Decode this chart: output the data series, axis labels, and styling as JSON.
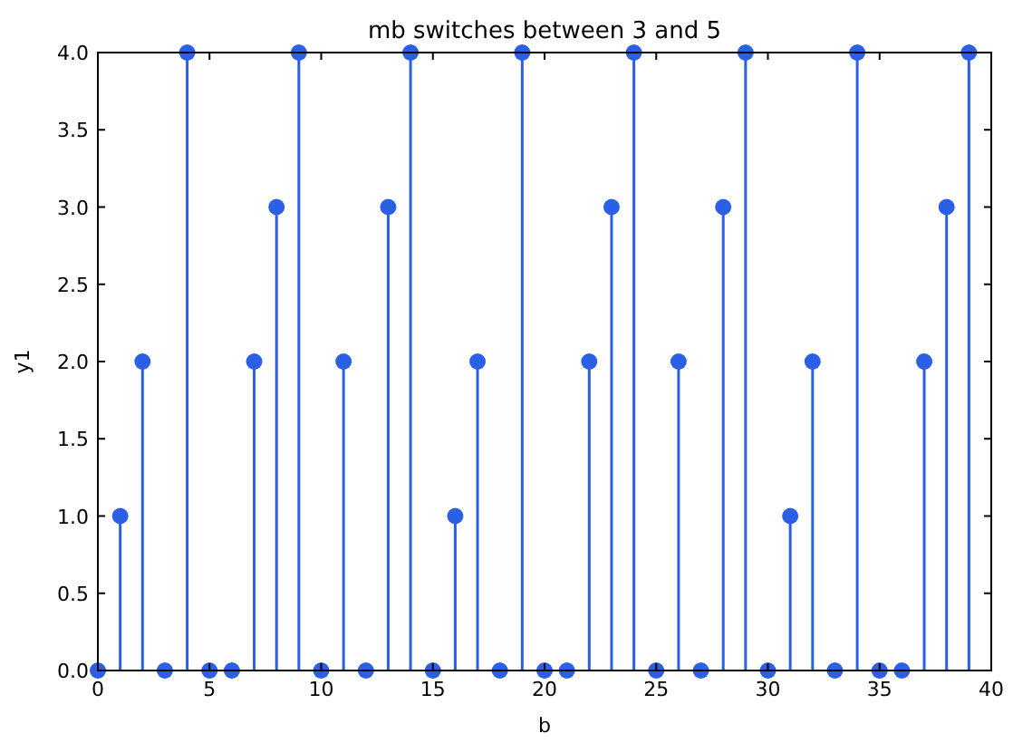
{
  "chart_data": {
    "type": "lollipop",
    "title": "mb switches between 3 and 5",
    "xlabel": "b",
    "ylabel": "y1",
    "x": [
      0,
      1,
      2,
      3,
      4,
      5,
      6,
      7,
      8,
      9,
      10,
      11,
      12,
      13,
      14,
      15,
      16,
      17,
      18,
      19,
      20,
      21,
      22,
      23,
      24,
      25,
      26,
      27,
      28,
      29,
      30,
      31,
      32,
      33,
      34,
      35,
      36,
      37,
      38,
      39
    ],
    "series": [
      {
        "color": "#2b5fe6",
        "values": [
          0,
          1,
          2,
          0,
          4,
          0,
          0,
          2,
          3,
          4,
          0,
          2,
          0,
          3,
          4,
          0,
          1,
          2,
          0,
          4,
          0,
          0,
          2,
          3,
          4,
          0,
          2,
          0,
          3,
          4,
          0,
          1,
          2,
          0,
          4,
          0,
          0,
          2,
          3,
          4
        ]
      }
    ],
    "xlim": [
      0,
      40
    ],
    "xticks": [
      0,
      5,
      10,
      15,
      20,
      25,
      30,
      35,
      40
    ],
    "ylim": [
      0,
      4
    ],
    "yticks": [
      {
        "value": 0,
        "label": "0.0"
      },
      {
        "value": 0.5,
        "label": "0.5"
      },
      {
        "value": 1,
        "label": "1.0"
      },
      {
        "value": 1.5,
        "label": "1.5"
      },
      {
        "value": 2,
        "label": "2.0"
      },
      {
        "value": 2.5,
        "label": "2.5"
      },
      {
        "value": 3,
        "label": "3.0"
      },
      {
        "value": 3.5,
        "label": "3.5"
      },
      {
        "value": 4,
        "label": "4.0"
      }
    ],
    "marker": "circle",
    "grid": false
  }
}
